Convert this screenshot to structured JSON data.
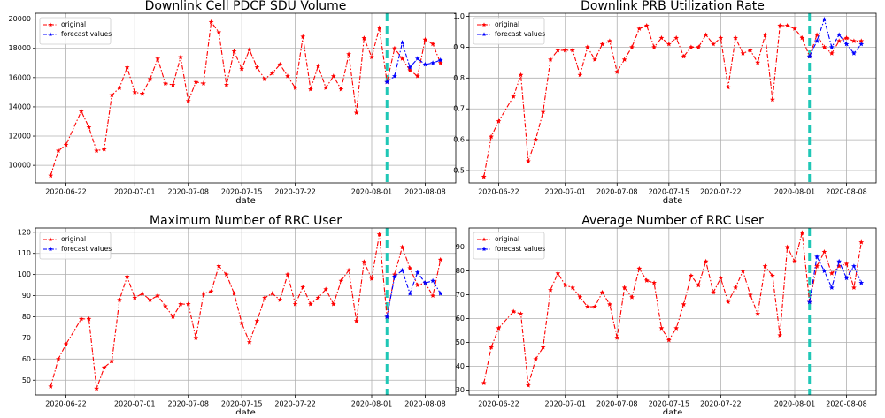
{
  "chart_data": [
    {
      "type": "line",
      "title": "Downlink Cell PDCP SDU Volume",
      "xlabel": "date",
      "x": [
        "2020-06-20",
        "2020-06-21",
        "2020-06-22",
        "2020-06-24",
        "2020-06-25",
        "2020-06-26",
        "2020-06-27",
        "2020-06-28",
        "2020-06-29",
        "2020-06-30",
        "2020-07-01",
        "2020-07-02",
        "2020-07-03",
        "2020-07-04",
        "2020-07-05",
        "2020-07-06",
        "2020-07-07",
        "2020-07-08",
        "2020-07-09",
        "2020-07-10",
        "2020-07-11",
        "2020-07-12",
        "2020-07-13",
        "2020-07-14",
        "2020-07-15",
        "2020-07-16",
        "2020-07-17",
        "2020-07-18",
        "2020-07-19",
        "2020-07-20",
        "2020-07-21",
        "2020-07-22",
        "2020-07-23",
        "2020-07-24",
        "2020-07-25",
        "2020-07-26",
        "2020-07-27",
        "2020-07-28",
        "2020-07-29",
        "2020-07-30",
        "2020-07-31",
        "2020-08-01",
        "2020-08-02",
        "2020-08-03",
        "2020-08-04",
        "2020-08-05",
        "2020-08-06",
        "2020-08-07",
        "2020-08-08",
        "2020-08-09",
        "2020-08-10"
      ],
      "series": [
        {
          "name": "original",
          "color": "#ff0000",
          "values": [
            9300,
            11000,
            11400,
            13700,
            12600,
            11000,
            11100,
            14800,
            15300,
            16700,
            15000,
            14900,
            15900,
            17300,
            15600,
            15500,
            17400,
            14400,
            15700,
            15600,
            19800,
            19100,
            15500,
            17800,
            16600,
            17900,
            16700,
            15900,
            16300,
            16900,
            16100,
            15300,
            18800,
            15200,
            16800,
            15300,
            16100,
            15200,
            17600,
            13600,
            18700,
            17400,
            19400,
            15700,
            18000,
            17300,
            16500,
            16100,
            18600,
            18300,
            17000
          ]
        },
        {
          "name": "forecast values",
          "color": "#0000ff",
          "values": [
            null,
            null,
            null,
            null,
            null,
            null,
            null,
            null,
            null,
            null,
            null,
            null,
            null,
            null,
            null,
            null,
            null,
            null,
            null,
            null,
            null,
            null,
            null,
            null,
            null,
            null,
            null,
            null,
            null,
            null,
            null,
            null,
            null,
            null,
            null,
            null,
            null,
            null,
            null,
            null,
            null,
            null,
            null,
            15700,
            16100,
            18400,
            16700,
            17300,
            16900,
            17000,
            17200
          ]
        }
      ],
      "xlim": [
        "2020-06-18",
        "2020-08-12"
      ],
      "xticks": [
        "2020-06-22",
        "2020-07-01",
        "2020-07-08",
        "2020-07-15",
        "2020-07-22",
        "2020-08-01",
        "2020-08-08"
      ],
      "ylim": [
        8800,
        20400
      ],
      "yticks": [
        10000,
        12000,
        14000,
        16000,
        18000,
        20000
      ],
      "vline": "2020-08-03",
      "vline_color": "#1fc7b6",
      "grid": true,
      "legend": "upper left"
    },
    {
      "type": "line",
      "title": "Downlink PRB Utilization Rate",
      "xlabel": "date",
      "x": [
        "2020-06-20",
        "2020-06-21",
        "2020-06-22",
        "2020-06-24",
        "2020-06-25",
        "2020-06-26",
        "2020-06-27",
        "2020-06-28",
        "2020-06-29",
        "2020-06-30",
        "2020-07-01",
        "2020-07-02",
        "2020-07-03",
        "2020-07-04",
        "2020-07-05",
        "2020-07-06",
        "2020-07-07",
        "2020-07-08",
        "2020-07-09",
        "2020-07-10",
        "2020-07-11",
        "2020-07-12",
        "2020-07-13",
        "2020-07-14",
        "2020-07-15",
        "2020-07-16",
        "2020-07-17",
        "2020-07-18",
        "2020-07-19",
        "2020-07-20",
        "2020-07-21",
        "2020-07-22",
        "2020-07-23",
        "2020-07-24",
        "2020-07-25",
        "2020-07-26",
        "2020-07-27",
        "2020-07-28",
        "2020-07-29",
        "2020-07-30",
        "2020-07-31",
        "2020-08-01",
        "2020-08-02",
        "2020-08-03",
        "2020-08-04",
        "2020-08-05",
        "2020-08-06",
        "2020-08-07",
        "2020-08-08",
        "2020-08-09",
        "2020-08-10"
      ],
      "series": [
        {
          "name": "original",
          "color": "#ff0000",
          "values": [
            0.48,
            0.61,
            0.66,
            0.74,
            0.81,
            0.53,
            0.6,
            0.69,
            0.86,
            0.89,
            0.89,
            0.89,
            0.81,
            0.9,
            0.86,
            0.91,
            0.92,
            0.82,
            0.86,
            0.9,
            0.96,
            0.97,
            0.9,
            0.93,
            0.91,
            0.93,
            0.87,
            0.9,
            0.9,
            0.94,
            0.91,
            0.93,
            0.77,
            0.93,
            0.88,
            0.89,
            0.85,
            0.94,
            0.73,
            0.97,
            0.97,
            0.96,
            0.93,
            0.87,
            0.94,
            0.9,
            0.88,
            0.92,
            0.93,
            0.92,
            0.92
          ]
        },
        {
          "name": "forecast values",
          "color": "#0000ff",
          "values": [
            null,
            null,
            null,
            null,
            null,
            null,
            null,
            null,
            null,
            null,
            null,
            null,
            null,
            null,
            null,
            null,
            null,
            null,
            null,
            null,
            null,
            null,
            null,
            null,
            null,
            null,
            null,
            null,
            null,
            null,
            null,
            null,
            null,
            null,
            null,
            null,
            null,
            null,
            null,
            null,
            null,
            null,
            null,
            0.87,
            0.92,
            0.99,
            0.9,
            0.94,
            0.91,
            0.88,
            0.91
          ]
        }
      ],
      "xlim": [
        "2020-06-18",
        "2020-08-12"
      ],
      "xticks": [
        "2020-06-22",
        "2020-07-01",
        "2020-07-08",
        "2020-07-15",
        "2020-07-22",
        "2020-08-01",
        "2020-08-08"
      ],
      "ylim": [
        0.46,
        1.01
      ],
      "yticks": [
        0.5,
        0.6,
        0.7,
        0.8,
        0.9,
        {
          "value": 1,
          "label": "1.0"
        }
      ],
      "vline": "2020-08-03",
      "vline_color": "#1fc7b6",
      "grid": true,
      "legend": "upper left"
    },
    {
      "type": "line",
      "title": "Maximum Number of RRC User",
      "xlabel": "date",
      "x": [
        "2020-06-20",
        "2020-06-21",
        "2020-06-22",
        "2020-06-24",
        "2020-06-25",
        "2020-06-26",
        "2020-06-27",
        "2020-06-28",
        "2020-06-29",
        "2020-06-30",
        "2020-07-01",
        "2020-07-02",
        "2020-07-03",
        "2020-07-04",
        "2020-07-05",
        "2020-07-06",
        "2020-07-07",
        "2020-07-08",
        "2020-07-09",
        "2020-07-10",
        "2020-07-11",
        "2020-07-12",
        "2020-07-13",
        "2020-07-14",
        "2020-07-15",
        "2020-07-16",
        "2020-07-17",
        "2020-07-18",
        "2020-07-19",
        "2020-07-20",
        "2020-07-21",
        "2020-07-22",
        "2020-07-23",
        "2020-07-24",
        "2020-07-25",
        "2020-07-26",
        "2020-07-27",
        "2020-07-28",
        "2020-07-29",
        "2020-07-30",
        "2020-07-31",
        "2020-08-01",
        "2020-08-02",
        "2020-08-03",
        "2020-08-04",
        "2020-08-05",
        "2020-08-06",
        "2020-08-07",
        "2020-08-08",
        "2020-08-09",
        "2020-08-10"
      ],
      "series": [
        {
          "name": "original",
          "color": "#ff0000",
          "values": [
            47,
            60,
            67,
            79,
            79,
            46,
            56,
            59,
            88,
            99,
            89,
            91,
            88,
            90,
            85,
            80,
            86,
            86,
            70,
            91,
            92,
            104,
            100,
            91,
            77,
            68,
            78,
            89,
            91,
            88,
            100,
            86,
            94,
            86,
            89,
            93,
            86,
            97,
            102,
            78,
            106,
            98,
            119,
            80,
            100,
            113,
            103,
            95,
            96,
            90,
            107
          ]
        },
        {
          "name": "forecast values",
          "color": "#0000ff",
          "values": [
            null,
            null,
            null,
            null,
            null,
            null,
            null,
            null,
            null,
            null,
            null,
            null,
            null,
            null,
            null,
            null,
            null,
            null,
            null,
            null,
            null,
            null,
            null,
            null,
            null,
            null,
            null,
            null,
            null,
            null,
            null,
            null,
            null,
            null,
            null,
            null,
            null,
            null,
            null,
            null,
            null,
            null,
            null,
            80,
            99,
            102,
            91,
            101,
            96,
            97,
            91
          ]
        }
      ],
      "xlim": [
        "2020-06-18",
        "2020-08-12"
      ],
      "xticks": [
        "2020-06-22",
        "2020-07-01",
        "2020-07-08",
        "2020-07-15",
        "2020-07-22",
        "2020-08-01",
        "2020-08-08"
      ],
      "ylim": [
        43,
        122
      ],
      "yticks": [
        50,
        60,
        70,
        80,
        90,
        100,
        110,
        120
      ],
      "vline": "2020-08-03",
      "vline_color": "#1fc7b6",
      "grid": true,
      "legend": "upper left"
    },
    {
      "type": "line",
      "title": "Average Number of RRC User",
      "xlabel": "date",
      "x": [
        "2020-06-20",
        "2020-06-21",
        "2020-06-22",
        "2020-06-24",
        "2020-06-25",
        "2020-06-26",
        "2020-06-27",
        "2020-06-28",
        "2020-06-29",
        "2020-06-30",
        "2020-07-01",
        "2020-07-02",
        "2020-07-03",
        "2020-07-04",
        "2020-07-05",
        "2020-07-06",
        "2020-07-07",
        "2020-07-08",
        "2020-07-09",
        "2020-07-10",
        "2020-07-11",
        "2020-07-12",
        "2020-07-13",
        "2020-07-14",
        "2020-07-15",
        "2020-07-16",
        "2020-07-17",
        "2020-07-18",
        "2020-07-19",
        "2020-07-20",
        "2020-07-21",
        "2020-07-22",
        "2020-07-23",
        "2020-07-24",
        "2020-07-25",
        "2020-07-26",
        "2020-07-27",
        "2020-07-28",
        "2020-07-29",
        "2020-07-30",
        "2020-07-31",
        "2020-08-01",
        "2020-08-02",
        "2020-08-03",
        "2020-08-04",
        "2020-08-05",
        "2020-08-06",
        "2020-08-07",
        "2020-08-08",
        "2020-08-09",
        "2020-08-10"
      ],
      "series": [
        {
          "name": "original",
          "color": "#ff0000",
          "values": [
            33,
            48,
            56,
            63,
            62,
            32,
            43,
            48,
            72,
            79,
            74,
            73,
            69,
            65,
            65,
            71,
            66,
            52,
            73,
            69,
            81,
            76,
            75,
            56,
            51,
            56,
            66,
            78,
            74,
            84,
            71,
            77,
            67,
            73,
            80,
            70,
            62,
            82,
            78,
            53,
            90,
            84,
            96,
            67,
            82,
            88,
            79,
            82,
            83,
            73,
            92
          ]
        },
        {
          "name": "forecast values",
          "color": "#0000ff",
          "values": [
            null,
            null,
            null,
            null,
            null,
            null,
            null,
            null,
            null,
            null,
            null,
            null,
            null,
            null,
            null,
            null,
            null,
            null,
            null,
            null,
            null,
            null,
            null,
            null,
            null,
            null,
            null,
            null,
            null,
            null,
            null,
            null,
            null,
            null,
            null,
            null,
            null,
            null,
            null,
            null,
            null,
            null,
            null,
            67,
            86,
            80,
            73,
            84,
            77,
            82,
            75
          ]
        }
      ],
      "xlim": [
        "2020-06-18",
        "2020-08-12"
      ],
      "xticks": [
        "2020-06-22",
        "2020-07-01",
        "2020-07-08",
        "2020-07-15",
        "2020-07-22",
        "2020-08-01",
        "2020-08-08"
      ],
      "ylim": [
        28,
        98
      ],
      "yticks": [
        30,
        40,
        50,
        60,
        70,
        80,
        90
      ],
      "vline": "2020-08-03",
      "vline_color": "#1fc7b6",
      "grid": true,
      "legend": "upper left"
    }
  ]
}
